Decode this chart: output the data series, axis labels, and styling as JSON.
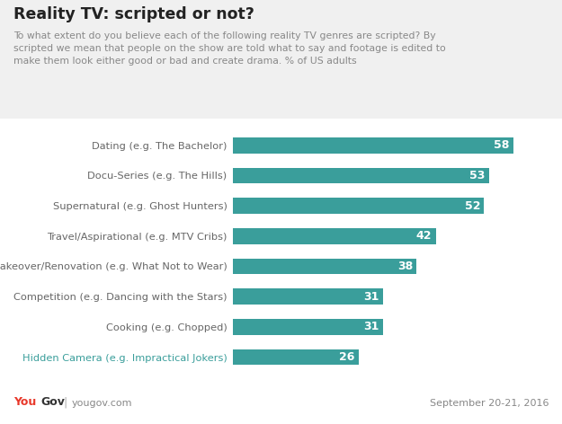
{
  "title": "Reality TV: scripted or not?",
  "subtitle": "To what extent do you believe each of the following reality TV genres are scripted? By\nscripted we mean that people on the show are told what to say and footage is edited to\nmake them look either good or bad and create drama. % of US adults",
  "categories": [
    "Dating (e.g. The Bachelor)",
    "Docu-Series (e.g. The Hills)",
    "Supernatural (e.g. Ghost Hunters)",
    "Travel/Aspirational (e.g. MTV Cribs)",
    "Makeover/Renovation (e.g. What Not to Wear)",
    "Competition (e.g. Dancing with the Stars)",
    "Cooking (e.g. Chopped)",
    "Hidden Camera (e.g. Impractical Jokers)"
  ],
  "values": [
    58,
    53,
    52,
    42,
    38,
    31,
    31,
    26
  ],
  "bar_color": "#3a9e9b",
  "value_color": "#ffffff",
  "title_color": "#222222",
  "subtitle_color": "#888888",
  "label_color": "#666666",
  "hidden_camera_color": "#3a9e9b",
  "background_color": "#f0f0f0",
  "chart_background": "#ffffff",
  "footer_you_color": "#e8382a",
  "footer_gov_color": "#333333",
  "footer_pipe_color": "#aaaaaa",
  "footer_text": "yougov.com",
  "footer_date": "September 20-21, 2016",
  "xlim": [
    0,
    65
  ]
}
